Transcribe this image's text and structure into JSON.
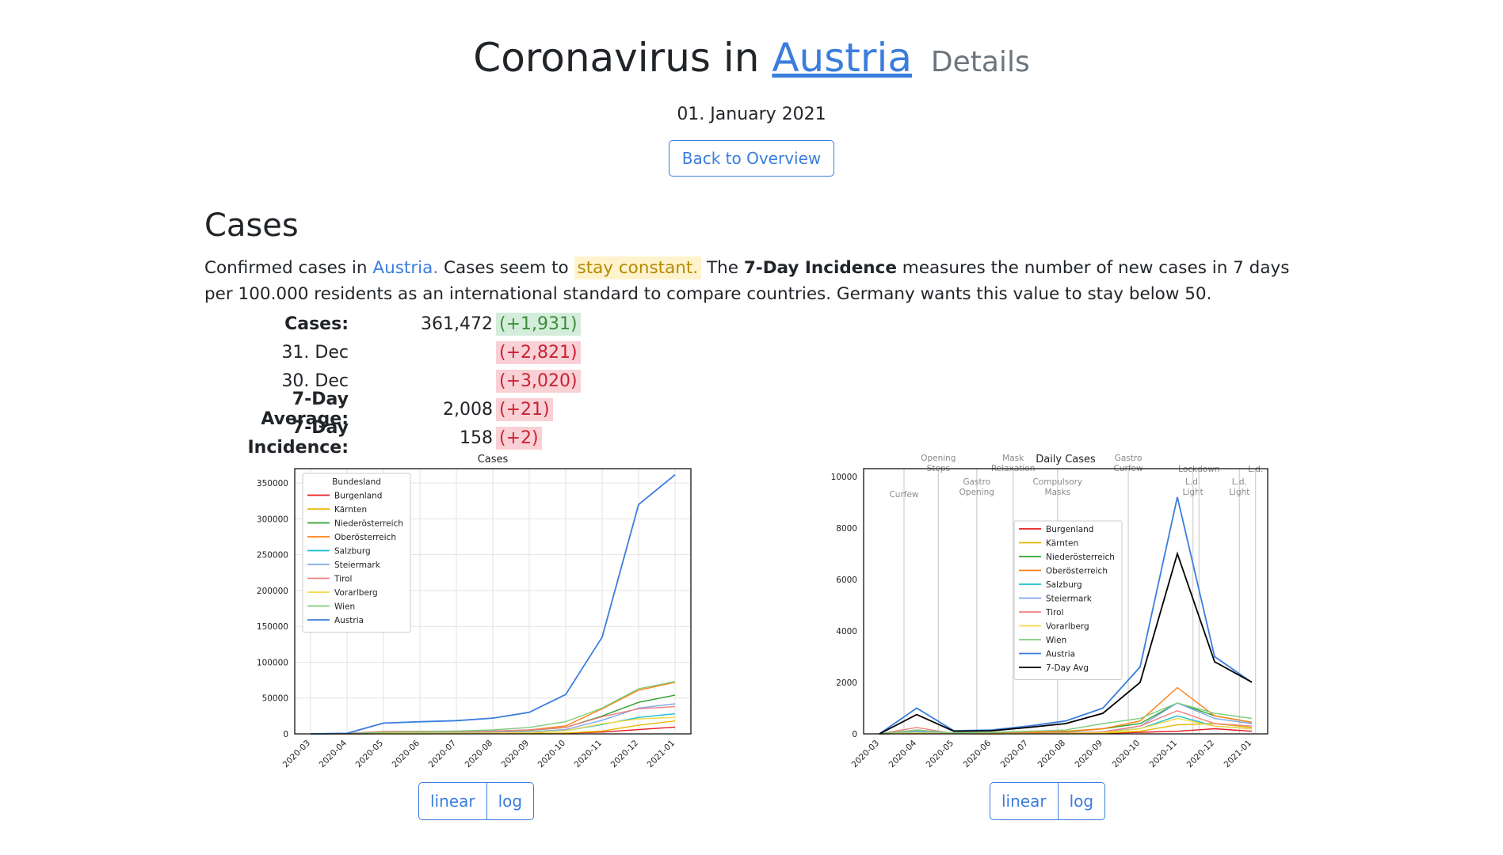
{
  "header": {
    "title_prefix": "Coronavirus in",
    "country": "Austria",
    "subtitle": "Details",
    "date": "01. January 2021",
    "back_button": "Back to Overview"
  },
  "cases_section": {
    "heading": "Cases",
    "desc_part1": "Confirmed cases in ",
    "desc_country": "Austria.",
    "desc_part2": " Cases seem to ",
    "desc_trend": "stay constant.",
    "desc_part3": " The ",
    "desc_bold": "7-Day Incidence",
    "desc_part4": " measures the number of new cases in 7 days per 100.000 residents as an international standard to compare countries. Germany wants this value to stay below 50.",
    "stats": [
      {
        "label": "Cases:",
        "value": "361,472",
        "delta": "(+1,931)",
        "color": "green",
        "bold": true
      },
      {
        "label": "31. Dec",
        "value": "",
        "delta": "(+2,821)",
        "color": "red",
        "bold": false
      },
      {
        "label": "30. Dec",
        "value": "",
        "delta": "(+3,020)",
        "color": "red",
        "bold": false
      },
      {
        "label": "7-Day Average:",
        "value": "2,008",
        "delta": "(+21)",
        "color": "red",
        "bold": true
      },
      {
        "label": "7-Day Incidence:",
        "value": "158",
        "delta": "(+2)",
        "color": "red",
        "bold": true
      }
    ]
  },
  "colors": {
    "Burgenland": "#e41a1c",
    "Kärnten": "#e6b800",
    "Niederösterreich": "#2ca02c",
    "Oberösterreich": "#ff7f0e",
    "Salzburg": "#17becf",
    "Steiermark": "#7fa8e8",
    "Tirol": "#f08080",
    "Vorarlberg": "#f5d742",
    "Wien": "#7ccd7c",
    "Austria": "#3b7ddd",
    "7-Day Avg": "#000000"
  },
  "chart_data": [
    {
      "type": "line",
      "title": "Cases",
      "legend_title": "Bundesland",
      "legend_position": "top-left",
      "x_ticks": [
        "2020-03",
        "2020-04",
        "2020-05",
        "2020-06",
        "2020-07",
        "2020-08",
        "2020-09",
        "2020-10",
        "2020-11",
        "2020-12",
        "2021-01"
      ],
      "y_ticks": [
        0,
        50000,
        100000,
        150000,
        200000,
        250000,
        300000,
        350000
      ],
      "ylim": [
        0,
        370000
      ],
      "grid": true,
      "series": [
        {
          "name": "Burgenland",
          "values": [
            0,
            0,
            200,
            300,
            300,
            400,
            600,
            1000,
            2500,
            6000,
            9500
          ]
        },
        {
          "name": "Kärnten",
          "values": [
            0,
            100,
            400,
            400,
            450,
            500,
            700,
            1200,
            4000,
            12000,
            18000
          ]
        },
        {
          "name": "Niederösterreich",
          "values": [
            0,
            300,
            2700,
            2900,
            3100,
            3500,
            5000,
            9000,
            25000,
            44000,
            54000
          ]
        },
        {
          "name": "Oberösterreich",
          "values": [
            0,
            300,
            2300,
            2400,
            2900,
            3700,
            5500,
            11000,
            35000,
            61000,
            72000
          ]
        },
        {
          "name": "Salzburg",
          "values": [
            0,
            200,
            1200,
            1250,
            1300,
            1500,
            2200,
            4500,
            13000,
            23000,
            28000
          ]
        },
        {
          "name": "Steiermark",
          "values": [
            0,
            200,
            1700,
            1800,
            1900,
            2200,
            3000,
            6000,
            19000,
            36000,
            42000
          ]
        },
        {
          "name": "Tirol",
          "values": [
            0,
            800,
            3500,
            3600,
            3700,
            4000,
            5500,
            9000,
            24000,
            35000,
            38000
          ]
        },
        {
          "name": "Vorarlberg",
          "values": [
            0,
            100,
            900,
            950,
            1000,
            1200,
            1800,
            4500,
            14000,
            21000,
            23000
          ]
        },
        {
          "name": "Wien",
          "values": [
            0,
            300,
            2300,
            3000,
            4000,
            5500,
            9000,
            17000,
            36000,
            63000,
            73000
          ]
        },
        {
          "name": "Austria",
          "values": [
            0,
            800,
            15000,
            16900,
            18500,
            22000,
            30000,
            55000,
            135000,
            320000,
            361472
          ]
        }
      ]
    },
    {
      "type": "line",
      "title": "Daily Cases",
      "legend_position": "center",
      "x_ticks": [
        "2020-03",
        "2020-04",
        "2020-05",
        "2020-06",
        "2020-07",
        "2020-08",
        "2020-09",
        "2020-10",
        "2020-11",
        "2020-12",
        "2021-01"
      ],
      "y_ticks": [
        0,
        2000,
        4000,
        6000,
        8000,
        10000
      ],
      "ylim": [
        0,
        10300
      ],
      "grid": false,
      "series": [
        {
          "name": "Burgenland",
          "values": [
            0,
            20,
            5,
            3,
            5,
            10,
            20,
            60,
            100,
            200,
            100
          ]
        },
        {
          "name": "Kärnten",
          "values": [
            0,
            30,
            5,
            3,
            10,
            10,
            30,
            100,
            350,
            400,
            250
          ]
        },
        {
          "name": "Niederösterreich",
          "values": [
            0,
            150,
            20,
            30,
            60,
            80,
            200,
            400,
            1200,
            700,
            450
          ]
        },
        {
          "name": "Oberösterreich",
          "values": [
            0,
            150,
            10,
            20,
            60,
            100,
            200,
            500,
            1800,
            700,
            450
          ]
        },
        {
          "name": "Salzburg",
          "values": [
            0,
            80,
            5,
            10,
            20,
            30,
            80,
            200,
            700,
            300,
            200
          ]
        },
        {
          "name": "Steiermark",
          "values": [
            0,
            100,
            10,
            10,
            20,
            40,
            80,
            300,
            1200,
            600,
            400
          ]
        },
        {
          "name": "Tirol",
          "values": [
            0,
            250,
            10,
            10,
            20,
            40,
            80,
            300,
            900,
            400,
            300
          ]
        },
        {
          "name": "Vorarlberg",
          "values": [
            0,
            40,
            5,
            5,
            10,
            20,
            50,
            200,
            600,
            300,
            200
          ]
        },
        {
          "name": "Wien",
          "values": [
            0,
            150,
            40,
            60,
            100,
            150,
            400,
            600,
            1200,
            800,
            600
          ]
        },
        {
          "name": "Austria",
          "values": [
            0,
            1000,
            120,
            150,
            300,
            500,
            1000,
            2600,
            9200,
            3000,
            2000
          ]
        },
        {
          "name": "7-Day Avg",
          "values": [
            0,
            750,
            100,
            120,
            250,
            400,
            800,
            2000,
            7000,
            2800,
            2008
          ]
        }
      ],
      "annotations": [
        "Curfew",
        "Opening Steps",
        "Gastro Opening",
        "Mask Relaxation",
        "Compulsory Masks",
        "Gastro Curfew",
        "L.d. Light",
        "Lockdown",
        "L.d. Light",
        "L.d."
      ]
    }
  ],
  "controls": {
    "linear": "linear",
    "log": "log"
  }
}
